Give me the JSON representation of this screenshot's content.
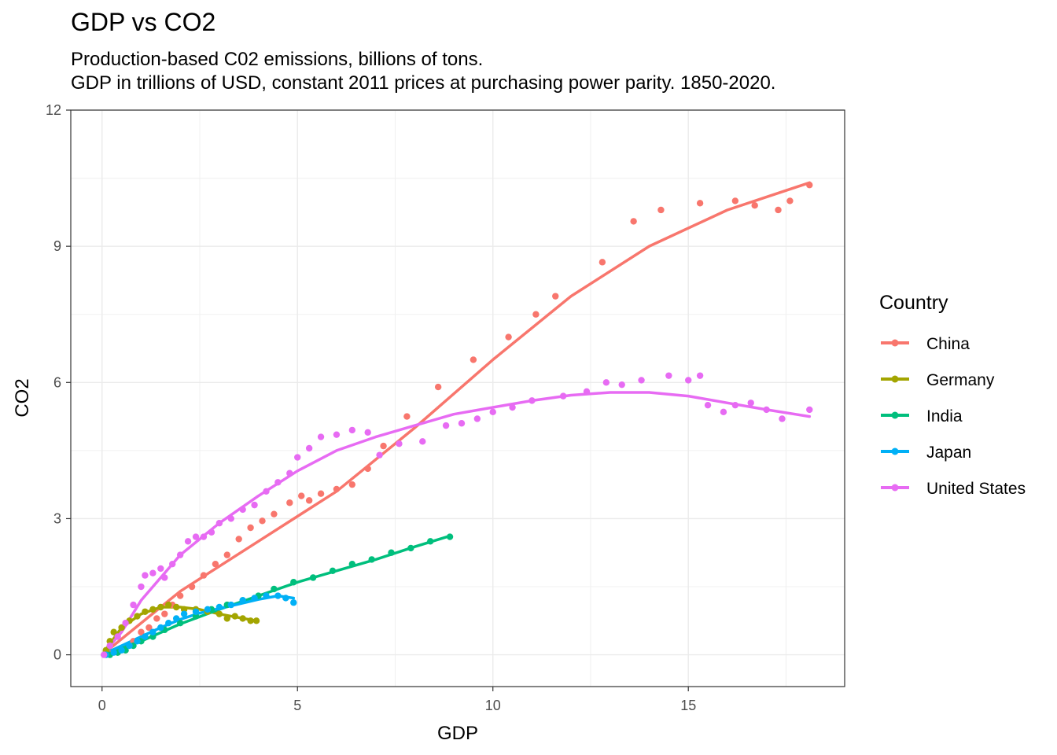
{
  "chart_data": {
    "type": "scatter",
    "title": "GDP vs CO2",
    "subtitle_line1": "Production-based C02 emissions, billions of tons.",
    "subtitle_line2": "GDP in trillions of USD, constant 2011 prices at purchasing power parity. 1850-2020.",
    "xlabel": "GDP",
    "ylabel": "CO2",
    "xlim": [
      -0.8,
      19.0
    ],
    "ylim": [
      -0.7,
      12.0
    ],
    "xticks": [
      0,
      5,
      10,
      15
    ],
    "yticks": [
      0,
      3,
      6,
      9,
      12
    ],
    "grid": true,
    "smooth_lines": true,
    "legend": {
      "title": "Country",
      "position": "right"
    },
    "series": [
      {
        "name": "China",
        "color": "#F8766D",
        "points": [
          [
            0.1,
            0.01
          ],
          [
            0.2,
            0.02
          ],
          [
            0.4,
            0.05
          ],
          [
            0.6,
            0.1
          ],
          [
            0.8,
            0.3
          ],
          [
            1.0,
            0.5
          ],
          [
            1.2,
            0.6
          ],
          [
            1.4,
            0.8
          ],
          [
            1.6,
            0.9
          ],
          [
            1.8,
            1.1
          ],
          [
            2.0,
            1.3
          ],
          [
            2.3,
            1.5
          ],
          [
            2.6,
            1.75
          ],
          [
            2.9,
            2.0
          ],
          [
            3.2,
            2.2
          ],
          [
            3.5,
            2.55
          ],
          [
            3.8,
            2.8
          ],
          [
            4.1,
            2.95
          ],
          [
            4.4,
            3.1
          ],
          [
            4.8,
            3.35
          ],
          [
            5.1,
            3.5
          ],
          [
            5.3,
            3.4
          ],
          [
            5.6,
            3.55
          ],
          [
            6.0,
            3.65
          ],
          [
            6.4,
            3.75
          ],
          [
            6.8,
            4.1
          ],
          [
            7.2,
            4.6
          ],
          [
            7.8,
            5.25
          ],
          [
            8.6,
            5.9
          ],
          [
            9.5,
            6.5
          ],
          [
            10.4,
            7.0
          ],
          [
            11.1,
            7.5
          ],
          [
            11.6,
            7.9
          ],
          [
            12.8,
            8.65
          ],
          [
            13.6,
            9.55
          ],
          [
            14.3,
            9.8
          ],
          [
            15.3,
            9.95
          ],
          [
            16.2,
            10.0
          ],
          [
            16.7,
            9.9
          ],
          [
            17.3,
            9.8
          ],
          [
            17.6,
            10.0
          ],
          [
            18.1,
            10.35
          ]
        ],
        "fit": [
          [
            0,
            0
          ],
          [
            2,
            1.4
          ],
          [
            4,
            2.5
          ],
          [
            6,
            3.6
          ],
          [
            8,
            5.0
          ],
          [
            10,
            6.5
          ],
          [
            12,
            7.9
          ],
          [
            14,
            9.0
          ],
          [
            16,
            9.8
          ],
          [
            18.1,
            10.4
          ]
        ]
      },
      {
        "name": "Germany",
        "color": "#A3A500",
        "points": [
          [
            0.1,
            0.1
          ],
          [
            0.2,
            0.3
          ],
          [
            0.3,
            0.5
          ],
          [
            0.5,
            0.6
          ],
          [
            0.7,
            0.75
          ],
          [
            0.9,
            0.85
          ],
          [
            1.1,
            0.95
          ],
          [
            1.3,
            1.0
          ],
          [
            1.5,
            1.05
          ],
          [
            1.7,
            1.1
          ],
          [
            1.9,
            1.05
          ],
          [
            2.1,
            1.0
          ],
          [
            2.4,
            1.0
          ],
          [
            2.7,
            0.95
          ],
          [
            3.0,
            0.9
          ],
          [
            3.2,
            0.8
          ],
          [
            3.4,
            0.85
          ],
          [
            3.6,
            0.8
          ],
          [
            3.8,
            0.75
          ],
          [
            3.95,
            0.75
          ]
        ],
        "fit": [
          [
            0,
            0
          ],
          [
            0.5,
            0.6
          ],
          [
            1,
            0.9
          ],
          [
            1.5,
            1.05
          ],
          [
            2,
            1.05
          ],
          [
            2.5,
            1.0
          ],
          [
            3,
            0.9
          ],
          [
            3.5,
            0.82
          ],
          [
            3.95,
            0.75
          ]
        ]
      },
      {
        "name": "India",
        "color": "#00BF7D",
        "points": [
          [
            0.2,
            0.0
          ],
          [
            0.4,
            0.05
          ],
          [
            0.6,
            0.1
          ],
          [
            0.8,
            0.2
          ],
          [
            1.0,
            0.3
          ],
          [
            1.3,
            0.4
          ],
          [
            1.6,
            0.55
          ],
          [
            2.0,
            0.7
          ],
          [
            2.4,
            0.85
          ],
          [
            2.8,
            1.0
          ],
          [
            3.2,
            1.1
          ],
          [
            3.6,
            1.2
          ],
          [
            4.0,
            1.3
          ],
          [
            4.4,
            1.45
          ],
          [
            4.9,
            1.6
          ],
          [
            5.4,
            1.7
          ],
          [
            5.9,
            1.85
          ],
          [
            6.4,
            2.0
          ],
          [
            6.9,
            2.1
          ],
          [
            7.4,
            2.25
          ],
          [
            7.9,
            2.35
          ],
          [
            8.4,
            2.5
          ],
          [
            8.9,
            2.6
          ]
        ],
        "fit": [
          [
            0,
            0
          ],
          [
            1,
            0.3
          ],
          [
            2,
            0.68
          ],
          [
            3,
            1.0
          ],
          [
            4,
            1.3
          ],
          [
            5,
            1.6
          ],
          [
            6,
            1.85
          ],
          [
            7,
            2.1
          ],
          [
            8,
            2.38
          ],
          [
            8.9,
            2.62
          ]
        ]
      },
      {
        "name": "Japan",
        "color": "#00B0F6",
        "points": [
          [
            0.1,
            0.0
          ],
          [
            0.3,
            0.05
          ],
          [
            0.5,
            0.1
          ],
          [
            0.7,
            0.2
          ],
          [
            0.9,
            0.3
          ],
          [
            1.1,
            0.4
          ],
          [
            1.3,
            0.5
          ],
          [
            1.5,
            0.6
          ],
          [
            1.7,
            0.7
          ],
          [
            1.9,
            0.8
          ],
          [
            2.1,
            0.9
          ],
          [
            2.4,
            0.95
          ],
          [
            2.7,
            1.0
          ],
          [
            3.0,
            1.05
          ],
          [
            3.3,
            1.1
          ],
          [
            3.6,
            1.2
          ],
          [
            3.9,
            1.25
          ],
          [
            4.2,
            1.3
          ],
          [
            4.5,
            1.3
          ],
          [
            4.7,
            1.25
          ],
          [
            4.9,
            1.15
          ]
        ],
        "fit": [
          [
            0,
            0
          ],
          [
            0.5,
            0.2
          ],
          [
            1,
            0.4
          ],
          [
            1.5,
            0.6
          ],
          [
            2,
            0.78
          ],
          [
            2.5,
            0.92
          ],
          [
            3,
            1.02
          ],
          [
            3.5,
            1.12
          ],
          [
            4,
            1.22
          ],
          [
            4.5,
            1.3
          ],
          [
            4.9,
            1.25
          ]
        ]
      },
      {
        "name": "United States",
        "color": "#E76BF3",
        "points": [
          [
            0.05,
            0.0
          ],
          [
            0.2,
            0.2
          ],
          [
            0.4,
            0.4
          ],
          [
            0.6,
            0.7
          ],
          [
            0.8,
            1.1
          ],
          [
            1.0,
            1.5
          ],
          [
            1.1,
            1.75
          ],
          [
            1.3,
            1.8
          ],
          [
            1.5,
            1.9
          ],
          [
            1.6,
            1.7
          ],
          [
            1.8,
            2.0
          ],
          [
            2.0,
            2.2
          ],
          [
            2.2,
            2.5
          ],
          [
            2.4,
            2.6
          ],
          [
            2.6,
            2.6
          ],
          [
            2.8,
            2.7
          ],
          [
            3.0,
            2.9
          ],
          [
            3.3,
            3.0
          ],
          [
            3.6,
            3.2
          ],
          [
            3.9,
            3.3
          ],
          [
            4.2,
            3.6
          ],
          [
            4.5,
            3.8
          ],
          [
            4.8,
            4.0
          ],
          [
            5.0,
            4.35
          ],
          [
            5.3,
            4.55
          ],
          [
            5.6,
            4.8
          ],
          [
            6.0,
            4.85
          ],
          [
            6.4,
            4.95
          ],
          [
            6.8,
            4.9
          ],
          [
            7.1,
            4.4
          ],
          [
            7.6,
            4.65
          ],
          [
            8.2,
            4.7
          ],
          [
            8.8,
            5.05
          ],
          [
            9.2,
            5.1
          ],
          [
            9.6,
            5.2
          ],
          [
            10.0,
            5.35
          ],
          [
            10.5,
            5.45
          ],
          [
            11.0,
            5.6
          ],
          [
            11.8,
            5.7
          ],
          [
            12.4,
            5.8
          ],
          [
            12.9,
            6.0
          ],
          [
            13.3,
            5.95
          ],
          [
            13.8,
            6.05
          ],
          [
            14.5,
            6.15
          ],
          [
            15.0,
            6.05
          ],
          [
            15.3,
            6.15
          ],
          [
            15.5,
            5.5
          ],
          [
            15.9,
            5.35
          ],
          [
            16.2,
            5.5
          ],
          [
            16.6,
            5.55
          ],
          [
            17.0,
            5.4
          ],
          [
            17.4,
            5.2
          ],
          [
            18.1,
            5.4
          ]
        ],
        "fit": [
          [
            0,
            0
          ],
          [
            0.5,
            0.5
          ],
          [
            1,
            1.2
          ],
          [
            2,
            2.2
          ],
          [
            3,
            2.9
          ],
          [
            4,
            3.5
          ],
          [
            5,
            4.05
          ],
          [
            6,
            4.5
          ],
          [
            7,
            4.8
          ],
          [
            8,
            5.05
          ],
          [
            9,
            5.3
          ],
          [
            10,
            5.45
          ],
          [
            11,
            5.6
          ],
          [
            12,
            5.72
          ],
          [
            13,
            5.78
          ],
          [
            14,
            5.78
          ],
          [
            15,
            5.7
          ],
          [
            16,
            5.55
          ],
          [
            17,
            5.4
          ],
          [
            18.1,
            5.25
          ]
        ]
      }
    ]
  }
}
